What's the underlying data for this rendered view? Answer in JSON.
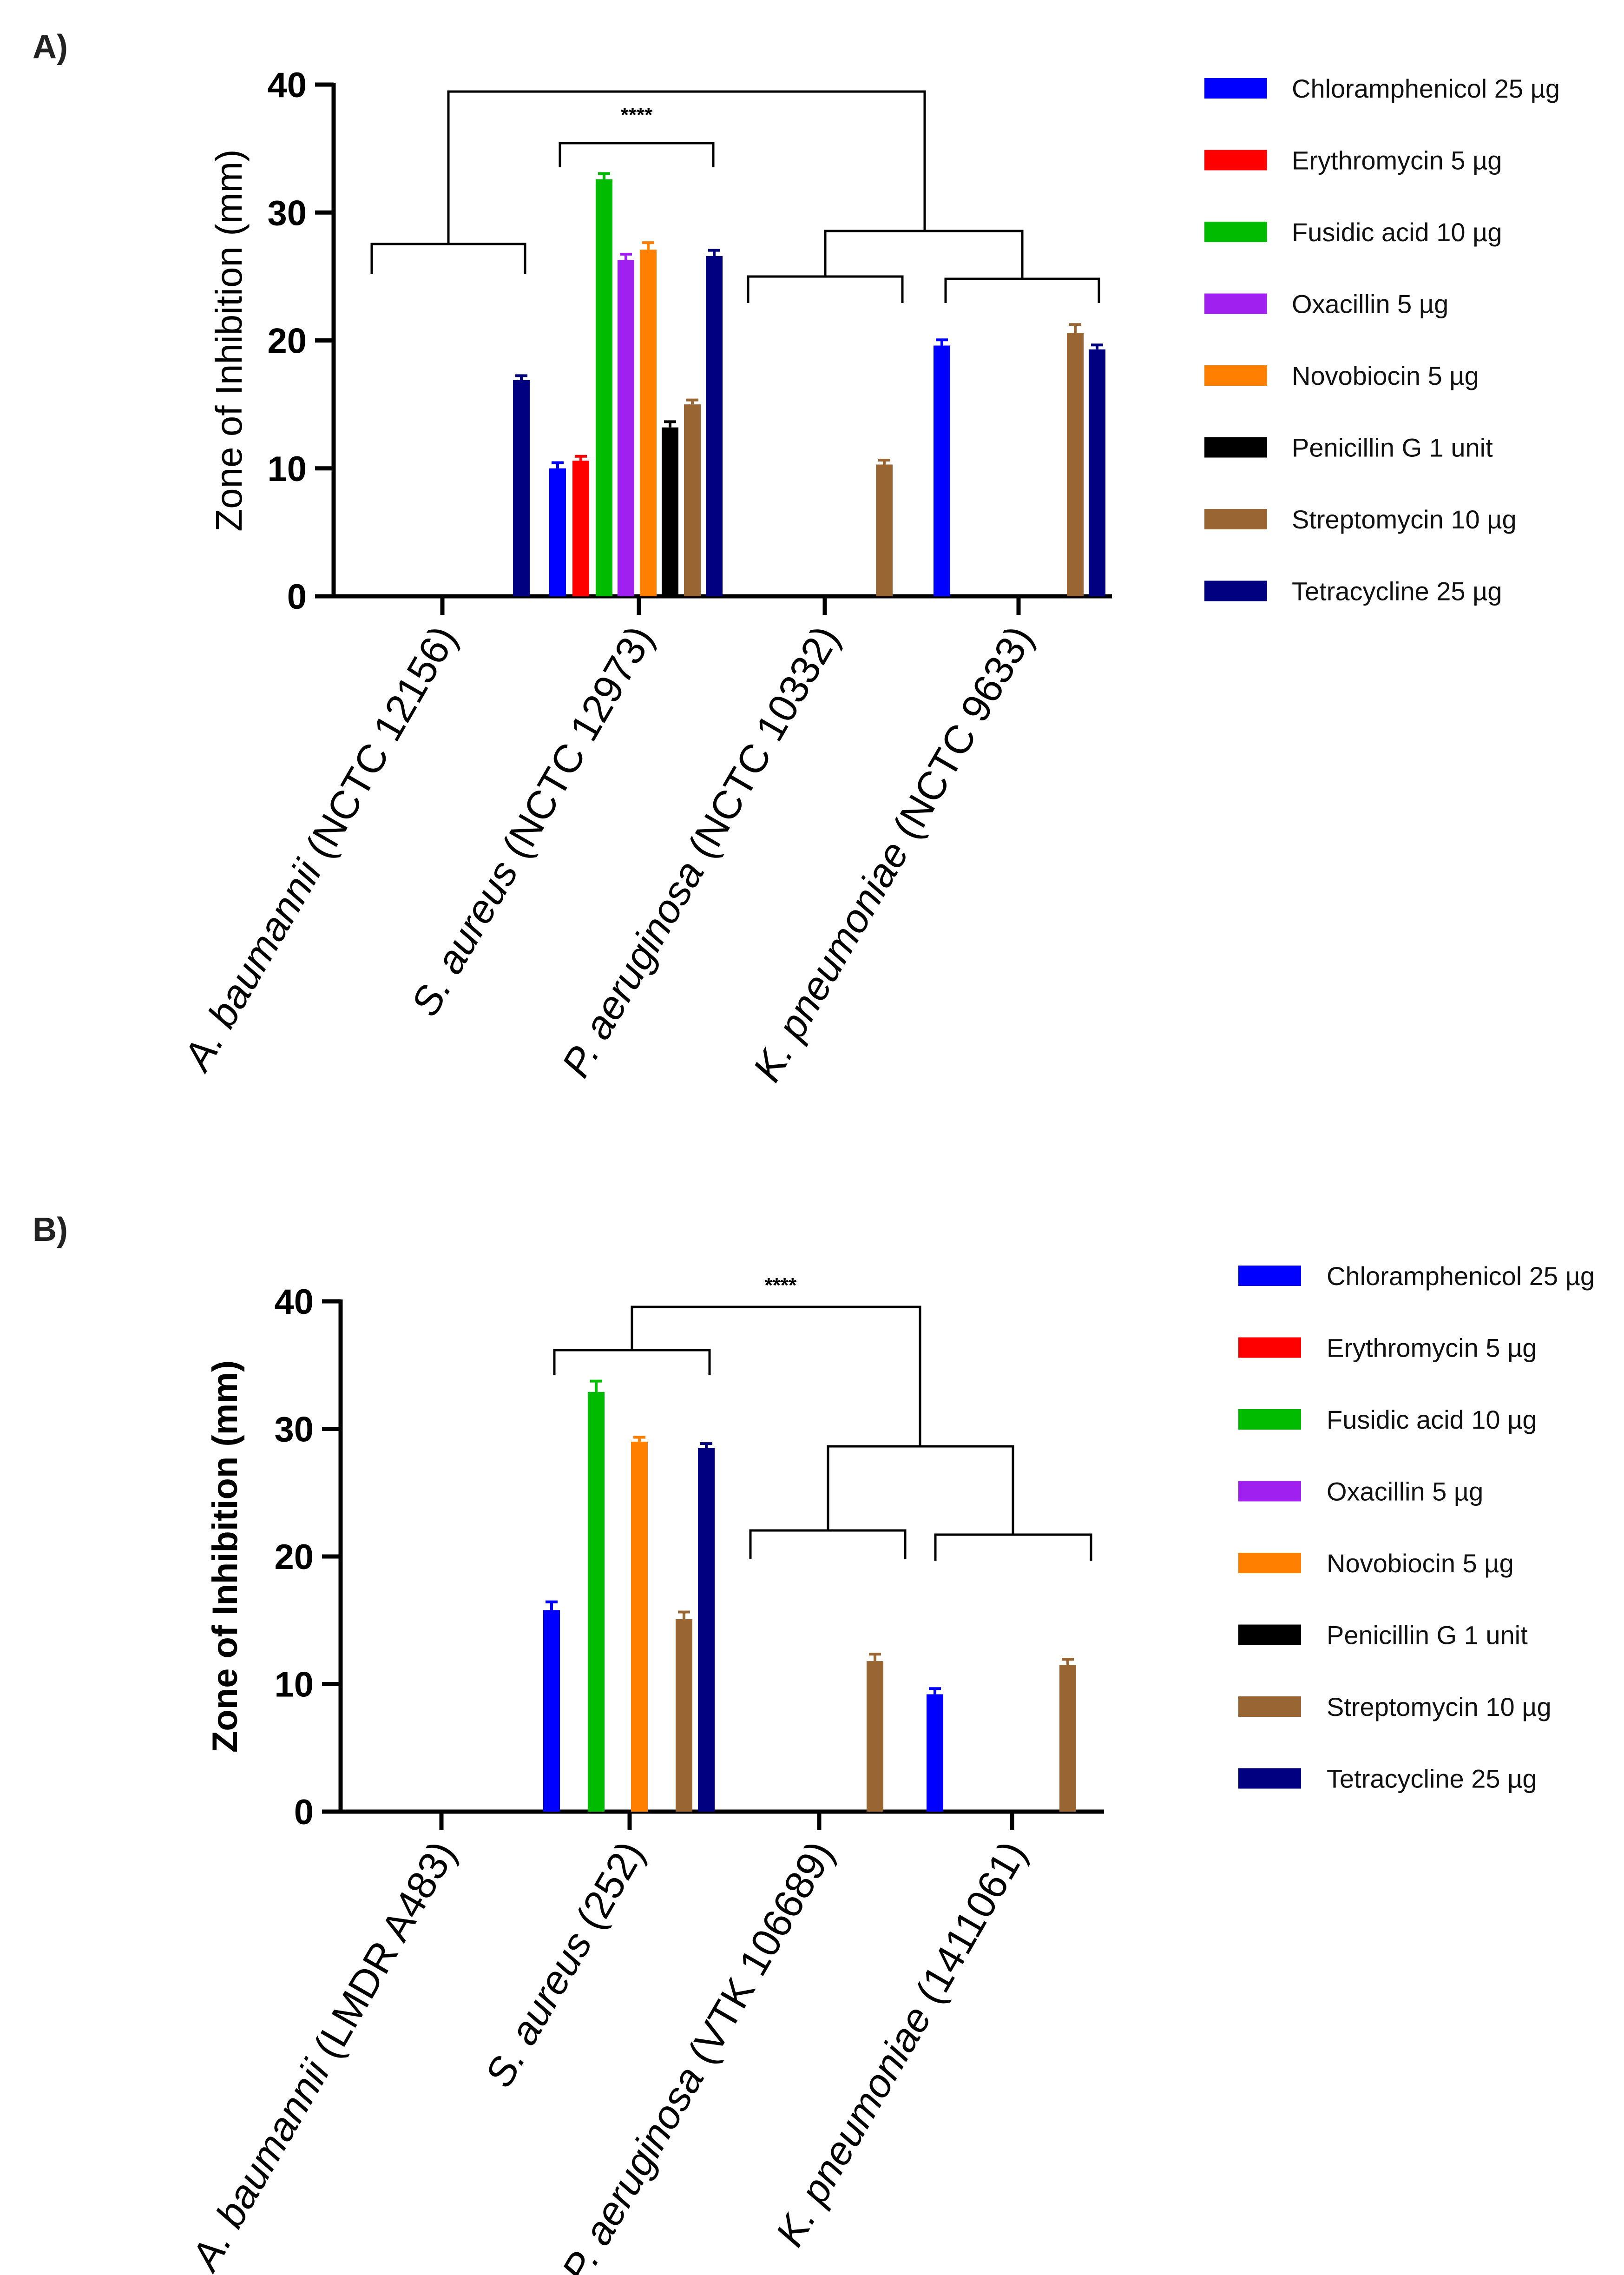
{
  "chart_data": [
    {
      "panel": "A)",
      "type": "bar",
      "title": "",
      "xlabel": "",
      "ylabel": "Zone of Inhibition (mm)",
      "ylim": [
        0,
        40
      ],
      "yticks": [
        "0",
        "10",
        "20",
        "30",
        "40"
      ],
      "categories": [
        {
          "italic": "A. baumannii",
          "rest": " (NCTC 12156)"
        },
        {
          "italic": "S. aureus",
          "rest": " (NCTC 12973)"
        },
        {
          "italic": "P. aeruginosa",
          "rest": " (NCTC 10332)"
        },
        {
          "italic": "K. pneumoniae",
          "rest": " (NCTC 9633)"
        }
      ],
      "series": [
        {
          "name": "Chloramphenicol 25 µg",
          "color": "#0000FF",
          "values": [
            0,
            10.0,
            0,
            19.6
          ],
          "errors": [
            0,
            0.3,
            0,
            0.3
          ]
        },
        {
          "name": "Erythromycin 5 µg",
          "color": "#FF0000",
          "values": [
            0,
            10.6,
            0,
            0
          ],
          "errors": [
            0,
            0.2,
            0,
            0
          ]
        },
        {
          "name": "Fusidic acid 10 µg",
          "color": "#00BB00",
          "values": [
            0,
            32.6,
            0,
            0
          ],
          "errors": [
            0,
            0.3,
            0,
            0
          ]
        },
        {
          "name": "Oxacillin 5 µg",
          "color": "#A020F0",
          "values": [
            0,
            26.3,
            0,
            0
          ],
          "errors": [
            0,
            0.3,
            0,
            0
          ]
        },
        {
          "name": "Novobiocin 5 µg",
          "color": "#FF8000",
          "values": [
            0,
            27.1,
            0,
            0
          ],
          "errors": [
            0,
            0.4,
            0,
            0
          ]
        },
        {
          "name": "Penicillin G 1 unit",
          "color": "#000000",
          "values": [
            0,
            13.2,
            0,
            0
          ],
          "errors": [
            0,
            0.3,
            0,
            0
          ]
        },
        {
          "name": "Streptomycin 10 µg",
          "color": "#996633",
          "values": [
            0,
            15.0,
            10.3,
            20.6
          ],
          "errors": [
            0,
            0.2,
            0.2,
            0.5
          ]
        },
        {
          "name": "Tetracycline 25 µg",
          "color": "#000080",
          "values": [
            16.9,
            26.6,
            0,
            19.3
          ],
          "errors": [
            0.2,
            0.3,
            0,
            0.2
          ]
        }
      ],
      "annotations": [
        "****"
      ]
    },
    {
      "panel": "B)",
      "type": "bar",
      "title": "",
      "xlabel": "",
      "ylabel": "Zone of Inhibition (mm)",
      "ylim": [
        0,
        40
      ],
      "yticks": [
        "0",
        "10",
        "20",
        "30",
        "40"
      ],
      "categories": [
        {
          "italic": "A. baumannii",
          "rest": " (LMDR A483)"
        },
        {
          "italic": "S. aureus",
          "rest": " (252)"
        },
        {
          "italic": "P. aeruginosa",
          "rest": " (VTK 106689)"
        },
        {
          "italic": "K. pneumoniae",
          "rest": " (1411061)"
        }
      ],
      "series": [
        {
          "name": "Chloramphenicol 25 µg",
          "color": "#0000FF",
          "values": [
            0,
            15.8,
            0,
            9.2
          ],
          "errors": [
            0,
            0.5,
            0,
            0.3
          ]
        },
        {
          "name": "Erythromycin 5 µg",
          "color": "#FF0000",
          "values": [
            0,
            0,
            0,
            0
          ],
          "errors": [
            0,
            0,
            0,
            0
          ]
        },
        {
          "name": "Fusidic acid 10 µg",
          "color": "#00BB00",
          "values": [
            0,
            32.9,
            0,
            0
          ],
          "errors": [
            0,
            0.7,
            0,
            0
          ]
        },
        {
          "name": "Oxacillin 5 µg",
          "color": "#A020F0",
          "values": [
            0,
            0,
            0,
            0
          ],
          "errors": [
            0,
            0,
            0,
            0
          ]
        },
        {
          "name": "Novobiocin 5 µg",
          "color": "#FF8000",
          "values": [
            0,
            29.0,
            0,
            0
          ],
          "errors": [
            0,
            0.2,
            0,
            0
          ]
        },
        {
          "name": "Penicillin G 1 unit",
          "color": "#000000",
          "values": [
            0,
            0,
            0,
            0
          ],
          "errors": [
            0,
            0,
            0,
            0
          ]
        },
        {
          "name": "Streptomycin 10 µg",
          "color": "#996633",
          "values": [
            0,
            15.1,
            11.8,
            11.5
          ],
          "errors": [
            0,
            0.4,
            0.4,
            0.3
          ]
        },
        {
          "name": "Tetracycline 25 µg",
          "color": "#000080",
          "values": [
            0,
            28.5,
            0,
            0
          ],
          "errors": [
            0,
            0.2,
            0,
            0
          ]
        }
      ],
      "annotations": [
        "****"
      ]
    }
  ]
}
